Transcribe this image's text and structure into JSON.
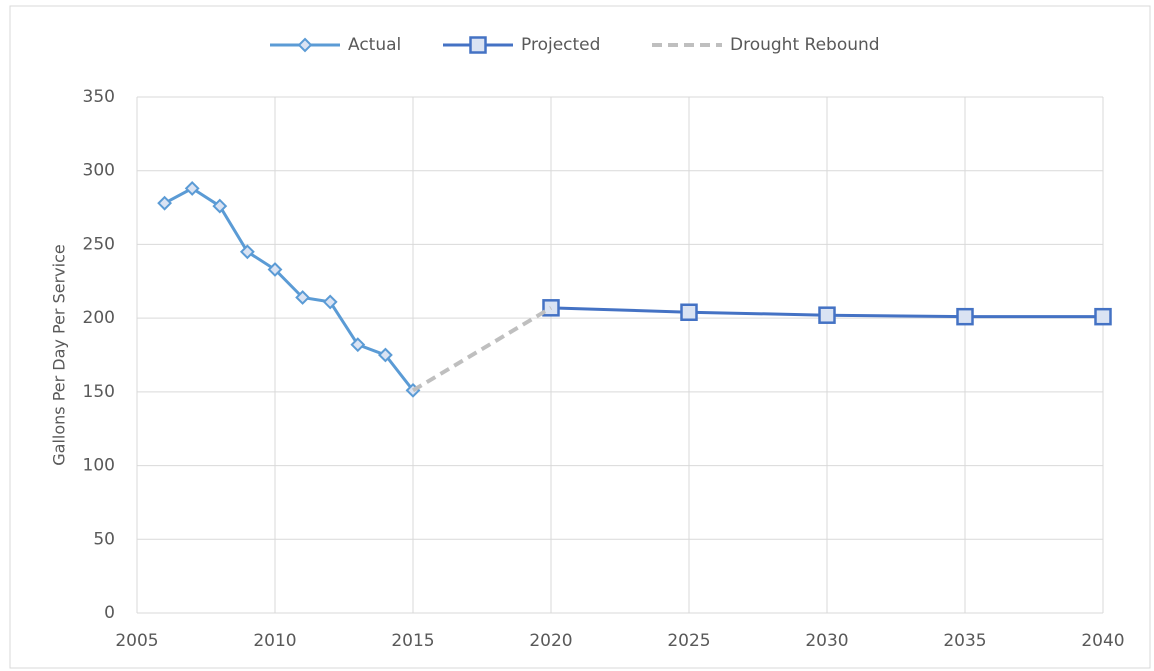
{
  "chart_data": {
    "type": "line",
    "y_label": "Gallons Per Day Per Service",
    "series": [
      {
        "name": "Actual",
        "color": "#5b9bd5",
        "marker": "diamond",
        "x": [
          2006,
          2007,
          2008,
          2009,
          2010,
          2011,
          2012,
          2013,
          2014,
          2015
        ],
        "values": [
          278,
          288,
          276,
          245,
          233,
          214,
          211,
          182,
          175,
          151
        ]
      },
      {
        "name": "Projected",
        "color": "#4472c4",
        "marker": "square",
        "x": [
          2020,
          2025,
          2030,
          2035,
          2040
        ],
        "values": [
          207,
          204,
          202,
          201,
          201
        ]
      },
      {
        "name": "Drought Rebound",
        "color": "#bfbfbf",
        "dashed": true,
        "x": [
          2015,
          2020
        ],
        "values": [
          151,
          207
        ]
      }
    ],
    "xlim": [
      2005,
      2040
    ],
    "xticks": [
      2005,
      2010,
      2015,
      2020,
      2025,
      2030,
      2035,
      2040
    ],
    "ylim": [
      0,
      350
    ],
    "yticks": [
      0,
      50,
      100,
      150,
      200,
      250,
      300,
      350
    ],
    "grid": true,
    "legend": "top"
  }
}
